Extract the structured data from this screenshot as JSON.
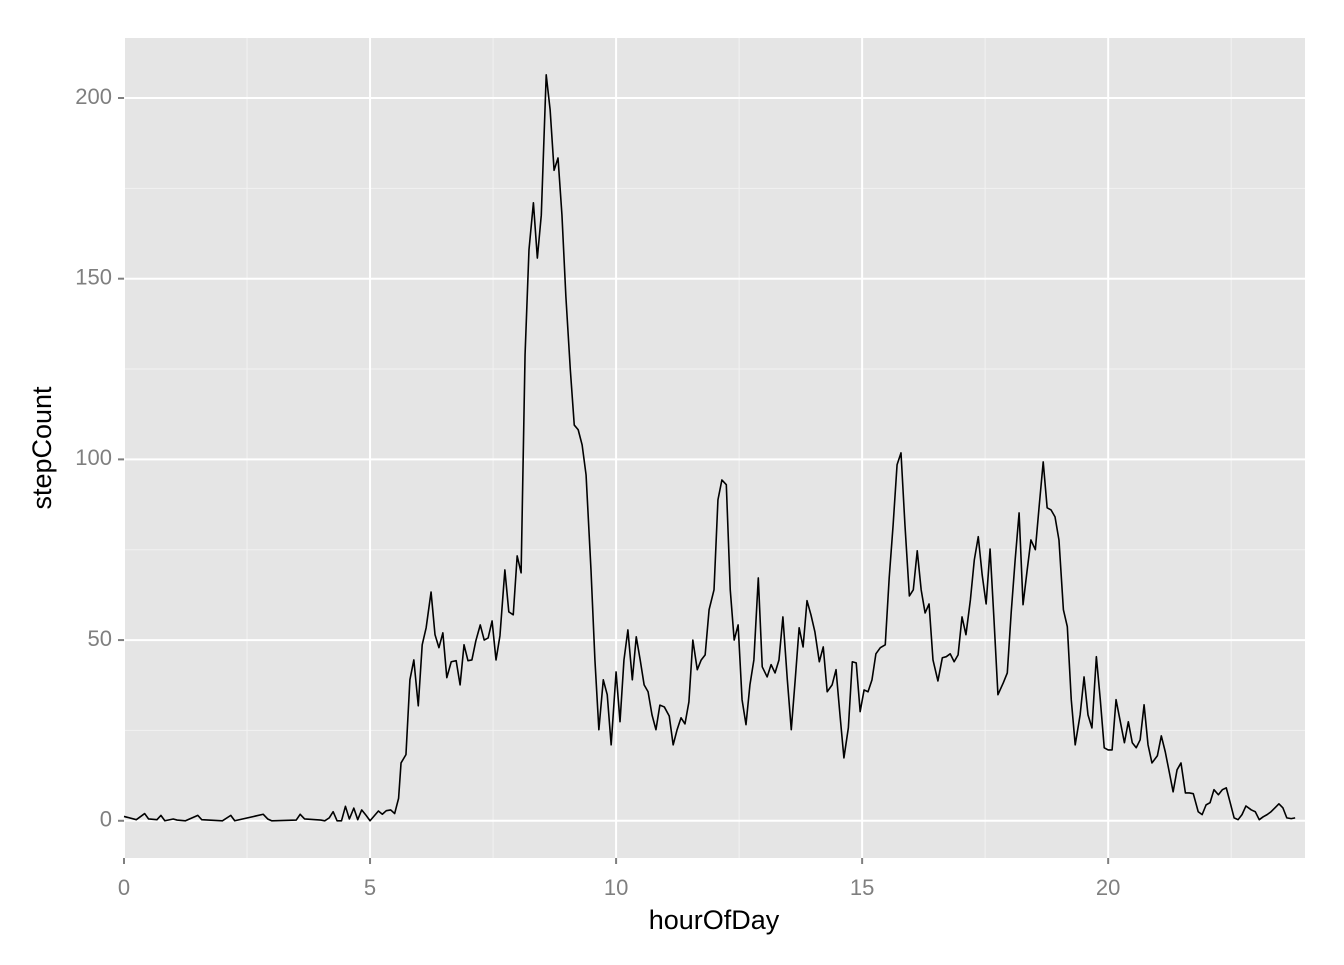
{
  "chart_data": {
    "type": "line",
    "xlabel": "hourOfDay",
    "ylabel": "stepCount",
    "x": [
      0,
      0.25,
      0.42,
      0.5,
      0.67,
      0.75,
      0.83,
      1,
      1.08,
      1.25,
      1.5,
      1.58,
      2,
      2.17,
      2.25,
      2.83,
      2.92,
      3,
      3.5,
      3.58,
      3.67,
      4,
      4.08,
      4.17,
      4.25,
      4.33,
      4.42,
      4.5,
      4.58,
      4.67,
      4.75,
      4.83,
      4.92,
      5,
      5.17,
      5.25,
      5.33,
      5.42,
      5.5,
      5.58,
      5.63,
      5.73,
      5.81,
      5.89,
      5.98,
      6.06,
      6.14,
      6.24,
      6.32,
      6.4,
      6.48,
      6.56,
      6.65,
      6.75,
      6.83,
      6.91,
      6.99,
      7.07,
      7.15,
      7.24,
      7.32,
      7.4,
      7.48,
      7.56,
      7.64,
      7.74,
      7.82,
      7.91,
      7.99,
      8.07,
      8.15,
      8.23,
      8.32,
      8.4,
      8.48,
      8.58,
      8.66,
      8.74,
      8.82,
      8.9,
      8.98,
      9.07,
      9.15,
      9.23,
      9.31,
      9.39,
      9.49,
      9.57,
      9.65,
      9.74,
      9.82,
      9.9,
      10,
      10.08,
      10.16,
      10.24,
      10.33,
      10.41,
      10.49,
      10.57,
      10.65,
      10.73,
      10.81,
      10.89,
      10.98,
      11.08,
      11.16,
      11.24,
      11.32,
      11.4,
      11.48,
      11.56,
      11.65,
      11.73,
      11.81,
      11.89,
      11.99,
      12.07,
      12.15,
      12.24,
      12.32,
      12.4,
      12.48,
      12.56,
      12.64,
      12.72,
      12.8,
      12.89,
      12.97,
      13.07,
      13.15,
      13.23,
      13.31,
      13.39,
      13.48,
      13.56,
      13.64,
      13.72,
      13.8,
      13.88,
      13.96,
      14.04,
      14.13,
      14.21,
      14.29,
      14.39,
      14.47,
      14.55,
      14.63,
      14.72,
      14.8,
      14.88,
      14.96,
      15.04,
      15.12,
      15.2,
      15.28,
      15.37,
      15.47,
      15.55,
      15.63,
      15.71,
      15.79,
      15.87,
      15.96,
      16.04,
      16.12,
      16.2,
      16.28,
      16.36,
      16.44,
      16.54,
      16.63,
      16.71,
      16.79,
      16.87,
      16.95,
      17.03,
      17.11,
      17.2,
      17.28,
      17.36,
      17.44,
      17.52,
      17.6,
      17.68,
      17.76,
      17.87,
      17.95,
      18.03,
      18.11,
      18.19,
      18.27,
      18.35,
      18.43,
      18.52,
      18.6,
      18.68,
      18.76,
      18.84,
      18.92,
      19,
      19.09,
      19.17,
      19.25,
      19.33,
      19.43,
      19.51,
      19.59,
      19.67,
      19.76,
      19.84,
      19.92,
      20,
      20.08,
      20.16,
      20.24,
      20.33,
      20.41,
      20.49,
      20.57,
      20.65,
      20.73,
      20.81,
      20.89,
      21,
      21.08,
      21.16,
      21.24,
      21.32,
      21.4,
      21.48,
      21.57,
      21.65,
      21.73,
      21.83,
      21.91,
      21.99,
      22.07,
      22.15,
      22.24,
      22.32,
      22.4,
      22.48,
      22.56,
      22.64,
      22.72,
      22.8,
      22.91,
      22.99,
      23.07,
      23.15,
      23.23,
      23.31,
      23.39,
      23.47,
      23.55,
      23.63,
      23.72,
      23.8
    ],
    "values": [
      1.2,
      0.3,
      2,
      0.5,
      0.3,
      1.5,
      0,
      0.5,
      0.2,
      0,
      1.5,
      0.3,
      0,
      1.5,
      0,
      1.8,
      0.5,
      0,
      0.2,
      1.8,
      0.5,
      0.2,
      0,
      0.8,
      2.5,
      0,
      0,
      4,
      0.5,
      3.5,
      0.3,
      3,
      1.5,
      0,
      2.7,
      1.8,
      2.8,
      3,
      2,
      6.2,
      16,
      18.3,
      39,
      44.5,
      31.8,
      48.7,
      53.4,
      63.3,
      51.5,
      47.9,
      52,
      39.6,
      44,
      44.3,
      37.6,
      48.7,
      44.3,
      44.5,
      49.8,
      54.2,
      50,
      50.6,
      55.3,
      44.5,
      51.2,
      69.4,
      57.8,
      57,
      73.3,
      68.6,
      128.9,
      158,
      171,
      155.7,
      167.6,
      206.4,
      196.7,
      180,
      183.4,
      167.6,
      145,
      124.8,
      109.5,
      108.2,
      104,
      95.7,
      69.4,
      44.5,
      25.2,
      39,
      34.9,
      21,
      41.2,
      27.4,
      44.5,
      52.8,
      39,
      50.9,
      44.5,
      37.6,
      35.7,
      29.3,
      25.2,
      32,
      31.5,
      29,
      21,
      25.2,
      28.5,
      26.8,
      32.9,
      50,
      41.8,
      44.5,
      45.9,
      58.4,
      63.9,
      88.8,
      94.3,
      93,
      63.9,
      50,
      54.2,
      33.5,
      26.6,
      37.6,
      44.5,
      67.2,
      42.6,
      39.8,
      43.2,
      40.9,
      44.5,
      56.4,
      39,
      25.2,
      39,
      53.4,
      48.1,
      60.9,
      57,
      52.3,
      44,
      48.1,
      35.7,
      37.6,
      41.8,
      29.3,
      17.4,
      25.7,
      44,
      43.7,
      30.2,
      36.2,
      35.7,
      39,
      46.2,
      47.9,
      48.7,
      67.2,
      81.9,
      98.5,
      101.8,
      81.9,
      62.2,
      63.9,
      74.7,
      63.9,
      57.5,
      60,
      44.5,
      38.7,
      45.1,
      45.4,
      46.2,
      44,
      45.9,
      56.4,
      51.5,
      61.1,
      72.2,
      78.6,
      68,
      60,
      75.2,
      55.6,
      34.9,
      38.2,
      40.9,
      57.8,
      72.2,
      85.2,
      59.8,
      68.9,
      77.7,
      75,
      87.4,
      99.3,
      86.6,
      86,
      84.1,
      77.7,
      58.4,
      53.7,
      33.5,
      21,
      29.3,
      39.8,
      29.3,
      25.7,
      45.4,
      33.5,
      20.2,
      19.6,
      19.6,
      33.5,
      27.9,
      21.6,
      27.4,
      21.6,
      20.2,
      22.4,
      32.1,
      21,
      16,
      18,
      23.5,
      19.1,
      13.6,
      8,
      14.1,
      16,
      7.7,
      7.7,
      7.5,
      2.5,
      1.7,
      4.4,
      5,
      8.6,
      7.2,
      8.6,
      9.1,
      5,
      0.8,
      0.3,
      1.7,
      4.1,
      3,
      2.5,
      0.3,
      1.1,
      1.7,
      2.5,
      3.6,
      4.7,
      3.6,
      0.8,
      0.6,
      0.8
    ],
    "color": "#000000",
    "xlim": [
      0,
      24
    ],
    "xticks": [
      0,
      5,
      10,
      15,
      20
    ],
    "ylim": [
      -10.3,
      216.6
    ],
    "yticks": [
      0,
      50,
      100,
      150,
      200
    ],
    "grid": true
  }
}
